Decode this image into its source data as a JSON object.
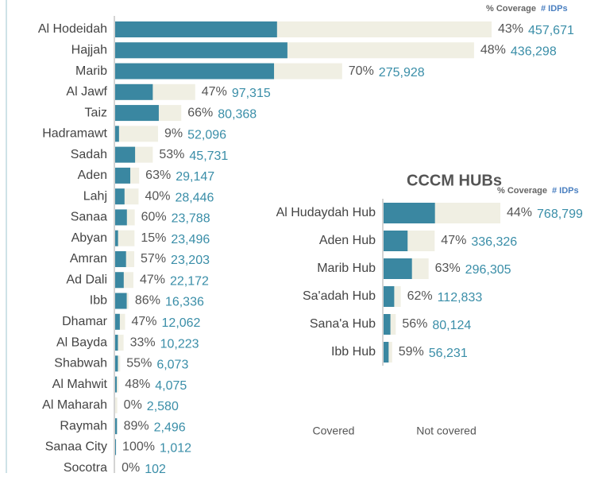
{
  "chart_data": [
    {
      "type": "bar",
      "header": [
        "% Coverage",
        "# IDPs"
      ],
      "categories": [
        "Al Hodeidah",
        "Hajjah",
        "Marib",
        "Al Jawf",
        "Taiz",
        "Hadramawt",
        "Sadah",
        "Aden",
        "Lahj",
        "Sanaa",
        "Abyan",
        "Amran",
        "Ad Dali",
        "Ibb",
        "Dhamar",
        "Al Bayda",
        "Shabwah",
        "Al Mahwit",
        "Al Maharah",
        "Raymah",
        "Sanaa City",
        "Socotra"
      ],
      "series": [
        {
          "name": "% Coverage",
          "values": [
            43,
            48,
            70,
            47,
            66,
            9,
            53,
            63,
            40,
            60,
            15,
            57,
            47,
            86,
            47,
            33,
            55,
            48,
            0,
            89,
            100,
            0
          ],
          "value_labels": [
            "43%",
            "48%",
            "70%",
            "47%",
            "66%",
            "9%",
            "53%",
            "63%",
            "40%",
            "60%",
            "15%",
            "57%",
            "47%",
            "86%",
            "47%",
            "33%",
            "55%",
            "48%",
            "0%",
            "89%",
            "100%",
            "0%"
          ]
        },
        {
          "name": "# IDPs",
          "values": [
            457671,
            436298,
            275928,
            97315,
            80368,
            52096,
            45731,
            29147,
            28446,
            23788,
            23496,
            23203,
            22172,
            16336,
            12062,
            10223,
            6073,
            4075,
            2580,
            2496,
            1012,
            102
          ],
          "value_labels": [
            "457,671",
            "436,298",
            "275,928",
            "97,315",
            "80,368",
            "52,096",
            "45,731",
            "29,147",
            "28,446",
            "23,788",
            "23,496",
            "23,203",
            "22,172",
            "16,336",
            "12,062",
            "10,223",
            "6,073",
            "4,075",
            "2,580",
            "2,496",
            "1,012",
            "102"
          ]
        }
      ]
    },
    {
      "type": "bar",
      "title": "CCCM HUBs",
      "header": [
        "% Coverage",
        "# IDPs"
      ],
      "categories": [
        "Al Hudaydah Hub",
        "Aden Hub",
        "Marib Hub",
        "Sa'adah Hub",
        "Sana'a Hub",
        "Ibb Hub"
      ],
      "series": [
        {
          "name": "% Coverage",
          "values": [
            44,
            47,
            63,
            62,
            56,
            59
          ],
          "value_labels": [
            "44%",
            "47%",
            "63%",
            "62%",
            "56%",
            "59%"
          ]
        },
        {
          "name": "# IDPs",
          "values": [
            768799,
            336326,
            296305,
            112833,
            80124,
            56231
          ],
          "value_labels": [
            "768,799",
            "336,326",
            "296,305",
            "112,833",
            "80,124",
            "56,231"
          ]
        }
      ]
    }
  ],
  "legend": [
    {
      "name": "Covered",
      "color": "#3a87a1"
    },
    {
      "name": "Not covered",
      "color": "#f0efe3"
    }
  ]
}
